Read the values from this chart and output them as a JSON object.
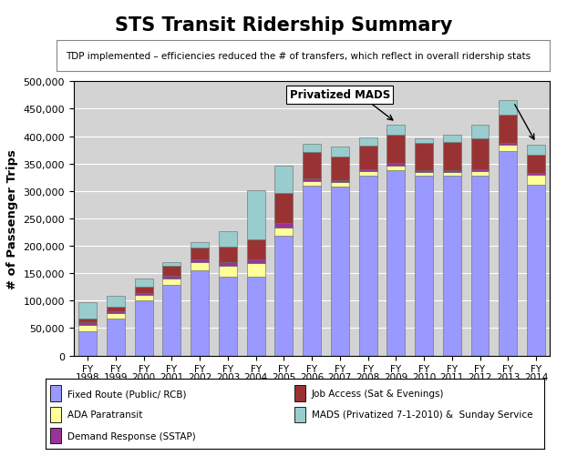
{
  "title": "STS Transit Ridership Summary",
  "ylabel": "# of Passenger Trips",
  "note": "TDP implemented – efficiencies reduced the # of transfers, which reflect in overall ridership stats",
  "annotation": "Privatized MADS",
  "years": [
    "FY\n1998",
    "FY\n1999",
    "FY\n2000",
    "FY\n2001",
    "FY\n2002",
    "FY\n2003",
    "FY\n2004",
    "FY\n2005",
    "FY\n2006",
    "FY\n2007",
    "FY\n2008",
    "FY\n2009",
    "FY\n2010",
    "FY\n2011",
    "FY\n2012",
    "FY\n2013",
    "FY\n2014"
  ],
  "fixed_route": [
    44000,
    68000,
    100000,
    128000,
    155000,
    143000,
    143000,
    218000,
    310000,
    308000,
    328000,
    338000,
    328000,
    328000,
    328000,
    373000,
    312000
  ],
  "ada_paratransit": [
    12000,
    10000,
    10000,
    12000,
    15000,
    20000,
    25000,
    15000,
    8000,
    8000,
    8000,
    8000,
    7000,
    7000,
    8000,
    12000,
    18000
  ],
  "demand_response": [
    4000,
    3000,
    3000,
    5000,
    5000,
    8000,
    8000,
    8000,
    5000,
    4000,
    4000,
    5000,
    3000,
    3000,
    3000,
    3000,
    3000
  ],
  "job_access": [
    8000,
    8000,
    12000,
    18000,
    22000,
    27000,
    35000,
    55000,
    48000,
    43000,
    43000,
    52000,
    50000,
    52000,
    57000,
    52000,
    33000
  ],
  "mads": [
    30000,
    20000,
    15000,
    8000,
    10000,
    28000,
    90000,
    50000,
    15000,
    18000,
    15000,
    18000,
    8000,
    12000,
    25000,
    25000,
    18000
  ],
  "colors": {
    "fixed_route": "#9999FF",
    "ada_paratransit": "#FFFF99",
    "demand_response": "#993399",
    "job_access": "#993333",
    "mads": "#99CCCC"
  },
  "ylim": [
    0,
    500000
  ],
  "yticks": [
    0,
    50000,
    100000,
    150000,
    200000,
    250000,
    300000,
    350000,
    400000,
    450000,
    500000
  ],
  "legend_labels": [
    "Fixed Route (Public/ RCB)",
    "ADA Paratransit",
    "Demand Response (SSTAP)",
    "Job Access (Sat & Evenings)",
    "MADS (Privatized 7-1-2010) &  Sunday Service"
  ],
  "bg_color": "#FFFFFF",
  "plot_bg": "#D3D3D3"
}
